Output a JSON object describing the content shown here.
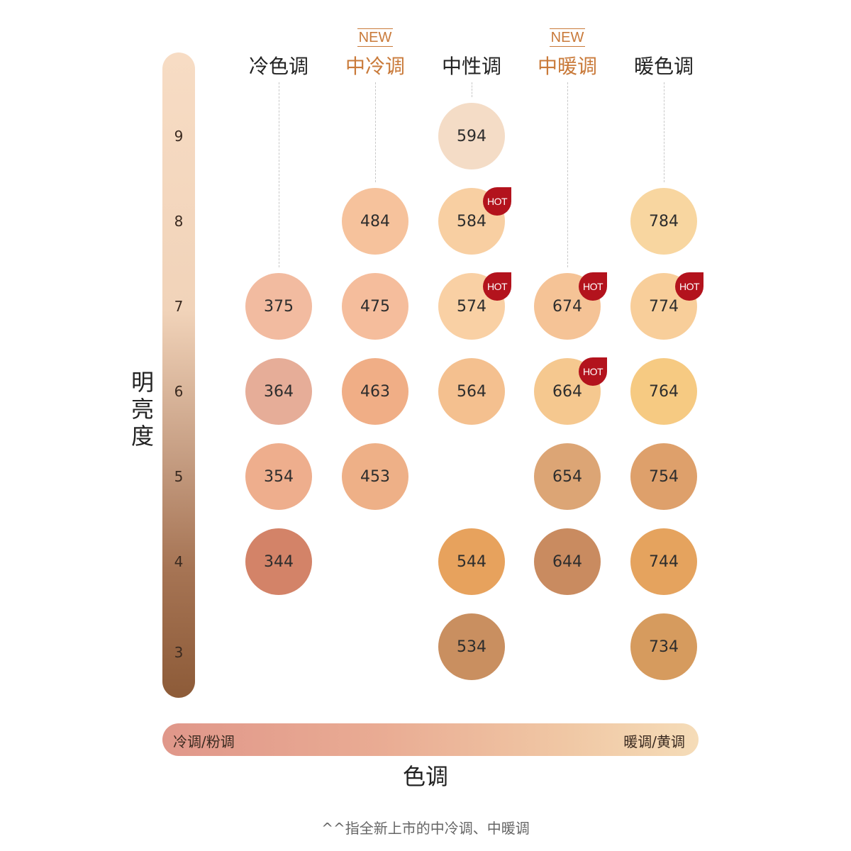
{
  "y_axis": {
    "title": "明亮度"
  },
  "x_axis": {
    "title": "色调",
    "left_label": "冷调/粉调",
    "right_label": "暖调/黄调"
  },
  "footnote": "^^指全新上市的中冷调、中暖调",
  "new_label": "NEW",
  "hot_label": "HOT",
  "colors": {
    "new_accent": "#c97a3a",
    "hot_badge": "#b3131d"
  },
  "chart_data": {
    "type": "table",
    "levels": [
      "9",
      "8",
      "7",
      "6",
      "5",
      "4",
      "3"
    ],
    "columns": [
      {
        "label": "冷色调",
        "new": false
      },
      {
        "label": "中冷调",
        "new": true
      },
      {
        "label": "中性调",
        "new": false
      },
      {
        "label": "中暖调",
        "new": true
      },
      {
        "label": "暖色调",
        "new": false
      }
    ],
    "shades": [
      {
        "code": "594",
        "column": 2,
        "level": 9,
        "color": "#f4dcc6",
        "hot": false
      },
      {
        "code": "484",
        "column": 1,
        "level": 8,
        "color": "#f6c29c",
        "hot": false
      },
      {
        "code": "584",
        "column": 2,
        "level": 8,
        "color": "#f8cfa2",
        "hot": true
      },
      {
        "code": "784",
        "column": 4,
        "level": 8,
        "color": "#f8d6a0",
        "hot": false
      },
      {
        "code": "375",
        "column": 0,
        "level": 7,
        "color": "#f2bba0",
        "hot": false
      },
      {
        "code": "475",
        "column": 1,
        "level": 7,
        "color": "#f5bd9c",
        "hot": false
      },
      {
        "code": "574",
        "column": 2,
        "level": 7,
        "color": "#f9d0a4",
        "hot": true
      },
      {
        "code": "674",
        "column": 3,
        "level": 7,
        "color": "#f5c396",
        "hot": true
      },
      {
        "code": "774",
        "column": 4,
        "level": 7,
        "color": "#f8ce9a",
        "hot": true
      },
      {
        "code": "364",
        "column": 0,
        "level": 6,
        "color": "#e6ad98",
        "hot": false
      },
      {
        "code": "463",
        "column": 1,
        "level": 6,
        "color": "#f0ae86",
        "hot": false
      },
      {
        "code": "564",
        "column": 2,
        "level": 6,
        "color": "#f4c08f",
        "hot": false
      },
      {
        "code": "664",
        "column": 3,
        "level": 6,
        "color": "#f5c88f",
        "hot": true
      },
      {
        "code": "764",
        "column": 4,
        "level": 6,
        "color": "#f6ca82",
        "hot": false
      },
      {
        "code": "354",
        "column": 0,
        "level": 5,
        "color": "#eeae8d",
        "hot": false
      },
      {
        "code": "453",
        "column": 1,
        "level": 5,
        "color": "#eeb087",
        "hot": false
      },
      {
        "code": "654",
        "column": 3,
        "level": 5,
        "color": "#dca575",
        "hot": false
      },
      {
        "code": "754",
        "column": 4,
        "level": 5,
        "color": "#dea06b",
        "hot": false
      },
      {
        "code": "344",
        "column": 0,
        "level": 4,
        "color": "#d38368",
        "hot": false
      },
      {
        "code": "544",
        "column": 2,
        "level": 4,
        "color": "#e7a25d",
        "hot": false
      },
      {
        "code": "644",
        "column": 3,
        "level": 4,
        "color": "#c98b60",
        "hot": false
      },
      {
        "code": "744",
        "column": 4,
        "level": 4,
        "color": "#e5a35e",
        "hot": false
      },
      {
        "code": "534",
        "column": 2,
        "level": 3,
        "color": "#c98f60",
        "hot": false
      },
      {
        "code": "734",
        "column": 4,
        "level": 3,
        "color": "#d69b5e",
        "hot": false
      }
    ]
  }
}
